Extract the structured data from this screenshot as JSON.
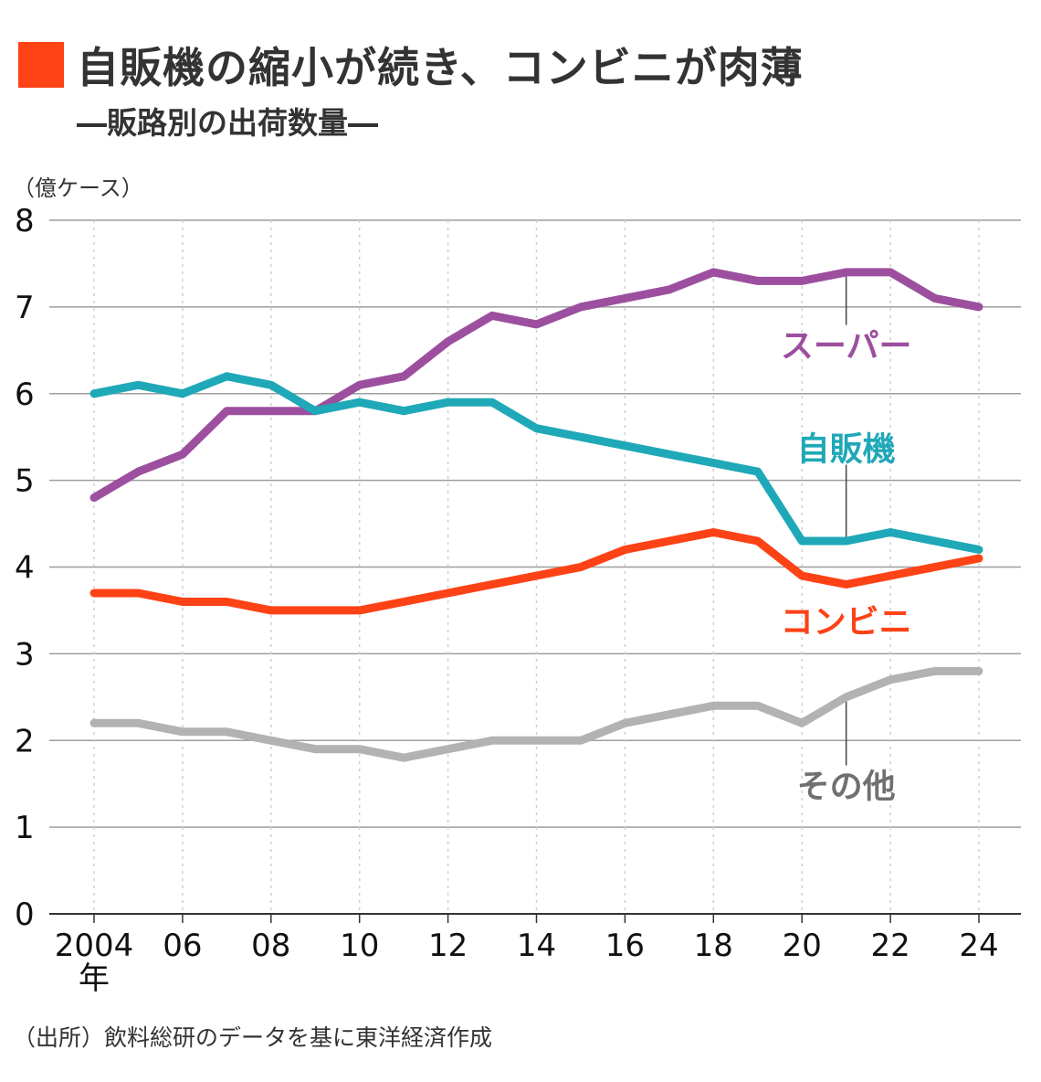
{
  "header": {
    "title": "自販機の縮小が続き、コンビニが肉薄",
    "subtitle": "―販路別の出荷数量―",
    "accent_color": "#fd4216"
  },
  "unit_label": "（億ケース）",
  "source_note": "（出所）飲料総研のデータを基に東洋経済作成",
  "chart_data": {
    "type": "line",
    "title": "自販機の縮小が続き、コンビニが肉薄",
    "subtitle": "―販路別の出荷数量―",
    "ylabel": "（億ケース）",
    "xlabel": "",
    "ylim": [
      0,
      8
    ],
    "yticks": [
      "0",
      "1",
      "2",
      "3",
      "4",
      "5",
      "6",
      "7",
      "8"
    ],
    "x": [
      2004,
      2005,
      2006,
      2007,
      2008,
      2009,
      2010,
      2011,
      2012,
      2013,
      2014,
      2015,
      2016,
      2017,
      2018,
      2019,
      2020,
      2021,
      2022,
      2023,
      2024
    ],
    "xticks": [
      {
        "year": 2004,
        "label": "2004",
        "sub": "年"
      },
      {
        "year": 2006,
        "label": "06"
      },
      {
        "year": 2008,
        "label": "08"
      },
      {
        "year": 2010,
        "label": "10"
      },
      {
        "year": 2012,
        "label": "12"
      },
      {
        "year": 2014,
        "label": "14"
      },
      {
        "year": 2016,
        "label": "16"
      },
      {
        "year": 2018,
        "label": "18"
      },
      {
        "year": 2020,
        "label": "20"
      },
      {
        "year": 2022,
        "label": "22"
      },
      {
        "year": 2024,
        "label": "24"
      }
    ],
    "grid": true,
    "series": [
      {
        "name": "スーパー",
        "color": "#9c4f9e",
        "values": [
          4.8,
          5.1,
          5.3,
          5.8,
          5.8,
          5.8,
          6.1,
          6.2,
          6.6,
          6.9,
          6.8,
          7.0,
          7.1,
          7.2,
          7.4,
          7.3,
          7.3,
          7.4,
          7.4,
          7.1,
          7.0
        ],
        "label_year": 2021,
        "label_value": 6.56,
        "leader_to": 7.4
      },
      {
        "name": "自販機",
        "color": "#1fa8b8",
        "values": [
          6.0,
          6.1,
          6.0,
          6.2,
          6.1,
          5.8,
          5.9,
          5.8,
          5.9,
          5.9,
          5.6,
          5.5,
          5.4,
          5.3,
          5.2,
          5.1,
          4.3,
          4.3,
          4.4,
          4.3,
          4.2
        ],
        "label_year": 2021,
        "label_value": 5.37,
        "leader_to": 4.3
      },
      {
        "name": "コンビニ",
        "color": "#fd4216",
        "values": [
          3.7,
          3.7,
          3.6,
          3.6,
          3.5,
          3.5,
          3.5,
          3.6,
          3.7,
          3.8,
          3.9,
          4.0,
          4.2,
          4.3,
          4.4,
          4.3,
          3.9,
          3.8,
          3.9,
          4.0,
          4.1
        ],
        "label_year": 2021,
        "label_value": 3.38
      },
      {
        "name": "その他",
        "color": "#b2b2b2",
        "label_color": "#707070",
        "values": [
          2.2,
          2.2,
          2.1,
          2.1,
          2.0,
          1.9,
          1.9,
          1.8,
          1.9,
          2.0,
          2.0,
          2.0,
          2.2,
          2.3,
          2.4,
          2.4,
          2.2,
          2.5,
          2.7,
          2.8,
          2.8
        ],
        "label_year": 2021,
        "label_value": 1.48,
        "leader_to": 2.5
      }
    ]
  }
}
